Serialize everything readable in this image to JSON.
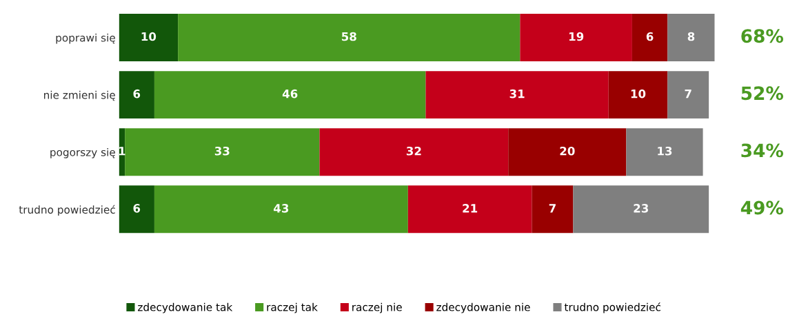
{
  "chart_data": {
    "type": "bar",
    "orientation": "horizontal",
    "stacked": true,
    "categories": [
      "poprawi się",
      "nie zmieni się",
      "pogorszy się",
      "trudno powiedzieć"
    ],
    "series": [
      {
        "name": "zdecydowanie tak",
        "color": "#12570a",
        "values": [
          10,
          6,
          1,
          6
        ]
      },
      {
        "name": "raczej tak",
        "color": "#4a9a21",
        "values": [
          58,
          46,
          33,
          43
        ]
      },
      {
        "name": "raczej nie",
        "color": "#c4001a",
        "values": [
          19,
          31,
          32,
          21
        ]
      },
      {
        "name": "zdecydowanie nie",
        "color": "#990000",
        "values": [
          6,
          10,
          20,
          7
        ]
      },
      {
        "name": "trudno powiedzieć",
        "color": "#7f7f7f",
        "values": [
          8,
          7,
          13,
          23
        ]
      }
    ],
    "annotations": [
      "68%",
      "52%",
      "34%",
      "49%"
    ],
    "xlim": [
      0,
      101
    ],
    "data_labels": true,
    "tick_labels": "y",
    "grid": false,
    "legend": "bottom"
  }
}
